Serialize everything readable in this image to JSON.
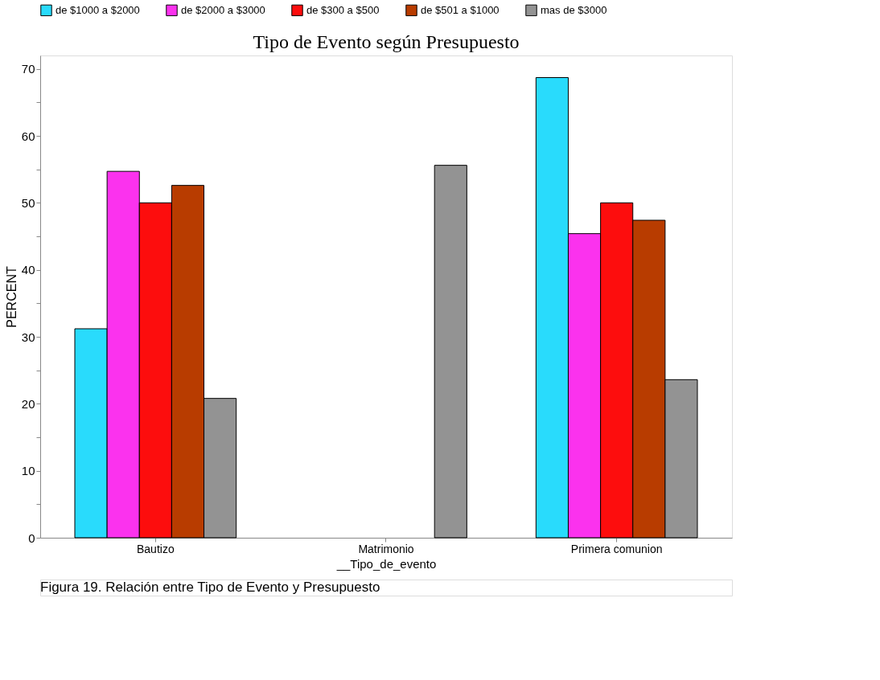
{
  "chart_data": {
    "type": "bar",
    "title": "Tipo de Evento según Presupuesto",
    "xlabel": "__Tipo_de_evento",
    "ylabel": "PERCENT",
    "categories": [
      "Bautizo",
      "Matrimonio",
      "Primera comunion"
    ],
    "series": [
      {
        "name": "de $1000 a $2000",
        "color": "#29dbfc",
        "values": [
          31.2,
          null,
          68.7
        ]
      },
      {
        "name": "de $2000 a $3000",
        "color": "#fb32ee",
        "values": [
          54.7,
          null,
          45.4
        ]
      },
      {
        "name": "de $300 a $500",
        "color": "#fd0d0d",
        "values": [
          50.0,
          null,
          50.0
        ]
      },
      {
        "name": "de $501 a $1000",
        "color": "#b83c00",
        "values": [
          52.6,
          null,
          47.4
        ]
      },
      {
        "name": "mas de $3000",
        "color": "#939393",
        "values": [
          20.8,
          55.6,
          23.6
        ]
      }
    ],
    "ylim": [
      0,
      72
    ],
    "yticks": [
      0,
      {
        "value": 5,
        "label": null
      },
      10,
      {
        "value": 15,
        "label": null
      },
      20,
      {
        "value": 25,
        "label": null
      },
      30,
      {
        "value": 35,
        "label": null
      },
      40,
      {
        "value": 45,
        "label": null
      },
      50,
      {
        "value": 55,
        "label": null
      },
      60,
      {
        "value": 65,
        "label": null
      },
      70
    ],
    "grid": false,
    "legend": "top",
    "annotations": [
      "Figura 19.  Relación entre Tipo de Evento y Presupuesto"
    ]
  }
}
